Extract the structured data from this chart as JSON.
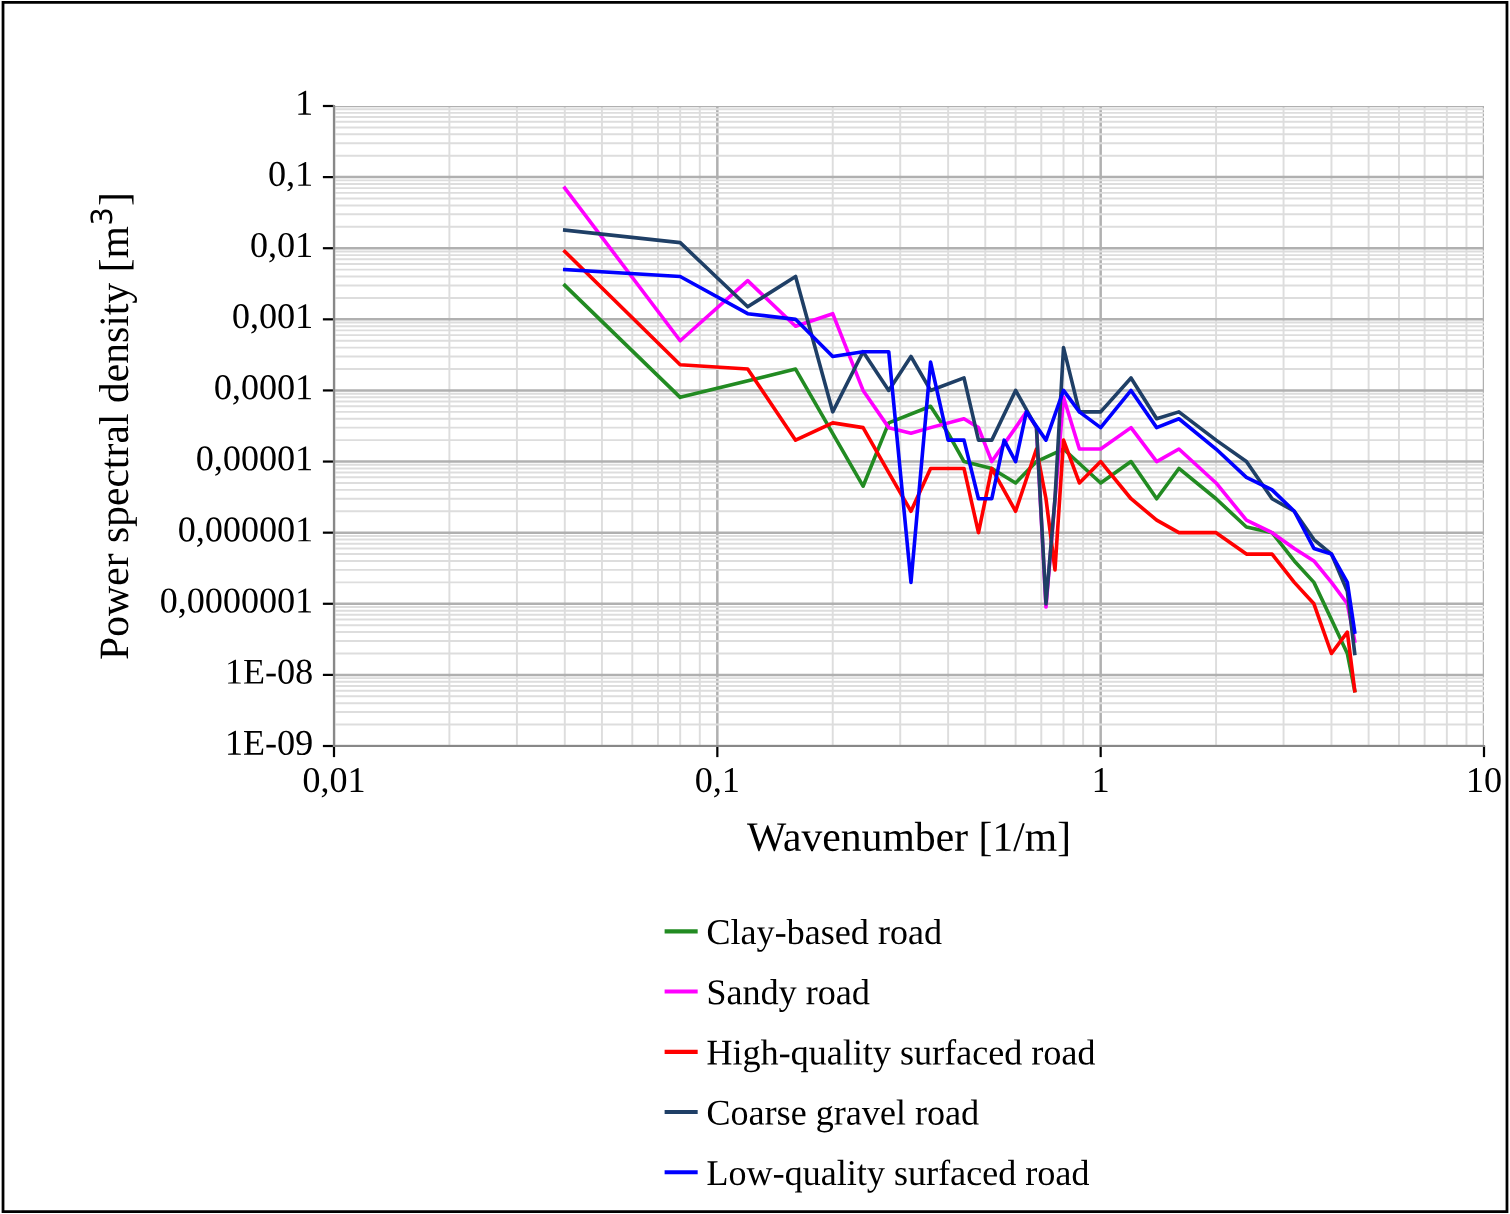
{
  "chart_data": {
    "type": "line",
    "xlabel": "Wavenumber [1/m]",
    "ylabel": "Power spectral density [m$^{3}$]",
    "log": "xy",
    "grid": true,
    "legend": "bottom",
    "marker": "none",
    "line_style": "solid",
    "xlim": [
      0.01,
      10
    ],
    "xticks": [
      {
        "value": 0.01,
        "label": "0,01"
      },
      {
        "value": 0.1,
        "label": "0,1"
      },
      1,
      10
    ],
    "ylim": [
      1e-09,
      1
    ],
    "yticks": [
      {
        "value": 1e-09,
        "label": "1E-09"
      },
      {
        "value": 1e-08,
        "label": "1E-08"
      },
      {
        "value": 1e-07,
        "label": "0,0000001"
      },
      {
        "value": 1e-06,
        "label": "0,000001"
      },
      {
        "value": 1e-05,
        "label": "0,00001"
      },
      {
        "value": 0.0001,
        "label": "0,0001"
      },
      {
        "value": 0.001,
        "label": "0,001"
      },
      {
        "value": 0.01,
        "label": "0,01"
      },
      {
        "value": 0.1,
        "label": "0,1"
      },
      1
    ],
    "series": [
      {
        "name": "Clay-based road",
        "color": "#228b22",
        "x": [
          0.04,
          0.08,
          0.16,
          0.24,
          0.28,
          0.36,
          0.4,
          0.44,
          0.52,
          0.6,
          0.68,
          0.8,
          1.0,
          1.2,
          1.4,
          1.6,
          2.0,
          2.4,
          2.8,
          3.2,
          3.6,
          4.0,
          4.4,
          4.6
        ],
        "values": [
          0.003,
          8e-05,
          0.0002,
          4.5e-06,
          3.5e-05,
          6e-05,
          2.5e-05,
          1e-05,
          8e-06,
          5e-06,
          1e-05,
          1.5e-05,
          5e-06,
          1e-05,
          3e-06,
          8e-06,
          3e-06,
          1.2e-06,
          1e-06,
          4e-07,
          2e-07,
          6e-08,
          2e-08,
          6e-09
        ]
      },
      {
        "name": "Sandy road",
        "color": "#ff00ff",
        "x": [
          0.04,
          0.08,
          0.12,
          0.16,
          0.2,
          0.24,
          0.28,
          0.32,
          0.36,
          0.44,
          0.48,
          0.52,
          0.6,
          0.64,
          0.68,
          0.72,
          0.8,
          0.88,
          1.0,
          1.2,
          1.4,
          1.6,
          2.0,
          2.4,
          2.8,
          3.2,
          3.6,
          4.0,
          4.4,
          4.6
        ],
        "values": [
          0.07,
          0.0005,
          0.0035,
          0.0008,
          0.0012,
          0.0001,
          3e-05,
          2.5e-05,
          3e-05,
          4e-05,
          3e-05,
          1e-05,
          3e-05,
          5e-05,
          3e-05,
          9e-08,
          8e-05,
          1.5e-05,
          1.5e-05,
          3e-05,
          1e-05,
          1.5e-05,
          5e-06,
          1.5e-06,
          1e-06,
          6e-07,
          4e-07,
          2e-07,
          1e-07,
          3e-08
        ]
      },
      {
        "name": "High-quality surfaced road",
        "color": "#ff0000",
        "x": [
          0.04,
          0.08,
          0.12,
          0.16,
          0.2,
          0.24,
          0.28,
          0.32,
          0.36,
          0.44,
          0.48,
          0.52,
          0.6,
          0.68,
          0.72,
          0.76,
          0.8,
          0.88,
          1.0,
          1.2,
          1.4,
          1.6,
          2.0,
          2.4,
          2.8,
          3.2,
          3.6,
          4.0,
          4.4,
          4.6
        ],
        "values": [
          0.009,
          0.00023,
          0.0002,
          2e-05,
          3.5e-05,
          3e-05,
          7e-06,
          2e-06,
          8e-06,
          8e-06,
          1e-06,
          8e-06,
          2e-06,
          1.5e-05,
          3e-06,
          3e-07,
          2e-05,
          5e-06,
          1e-05,
          3e-06,
          1.5e-06,
          1e-06,
          1e-06,
          5e-07,
          5e-07,
          2e-07,
          1e-07,
          2e-08,
          4e-08,
          6e-09
        ]
      },
      {
        "name": "Coarse gravel road",
        "color": "#1f3f66",
        "x": [
          0.04,
          0.08,
          0.12,
          0.16,
          0.2,
          0.24,
          0.28,
          0.32,
          0.36,
          0.44,
          0.48,
          0.52,
          0.6,
          0.68,
          0.72,
          0.76,
          0.8,
          0.88,
          1.0,
          1.2,
          1.4,
          1.6,
          2.0,
          2.4,
          2.8,
          3.2,
          3.6,
          4.0,
          4.4,
          4.6
        ],
        "values": [
          0.018,
          0.012,
          0.0015,
          0.004,
          5e-05,
          0.00035,
          0.0001,
          0.0003,
          0.0001,
          0.00015,
          2e-05,
          2e-05,
          0.0001,
          3e-05,
          1e-07,
          3e-06,
          0.0004,
          5e-05,
          5e-05,
          0.00015,
          4e-05,
          5e-05,
          2e-05,
          1e-05,
          3e-06,
          2e-06,
          8e-07,
          5e-07,
          1.5e-07,
          2e-08
        ]
      },
      {
        "name": "Low-quality surfaced road",
        "color": "#0000ff",
        "x": [
          0.04,
          0.08,
          0.12,
          0.16,
          0.2,
          0.24,
          0.28,
          0.32,
          0.36,
          0.4,
          0.44,
          0.48,
          0.52,
          0.56,
          0.6,
          0.64,
          0.72,
          0.8,
          0.88,
          1.0,
          1.2,
          1.4,
          1.6,
          2.0,
          2.4,
          2.8,
          3.2,
          3.6,
          4.0,
          4.4,
          4.6
        ],
        "values": [
          0.005,
          0.004,
          0.0012,
          0.001,
          0.0003,
          0.00035,
          0.00035,
          2e-07,
          0.00025,
          2e-05,
          2e-05,
          3e-06,
          3e-06,
          2e-05,
          1e-05,
          5e-05,
          2e-05,
          0.0001,
          5e-05,
          3e-05,
          0.0001,
          3e-05,
          4e-05,
          1.5e-05,
          6e-06,
          4e-06,
          2e-06,
          6e-07,
          5e-07,
          2e-07,
          4e-08
        ]
      }
    ]
  }
}
